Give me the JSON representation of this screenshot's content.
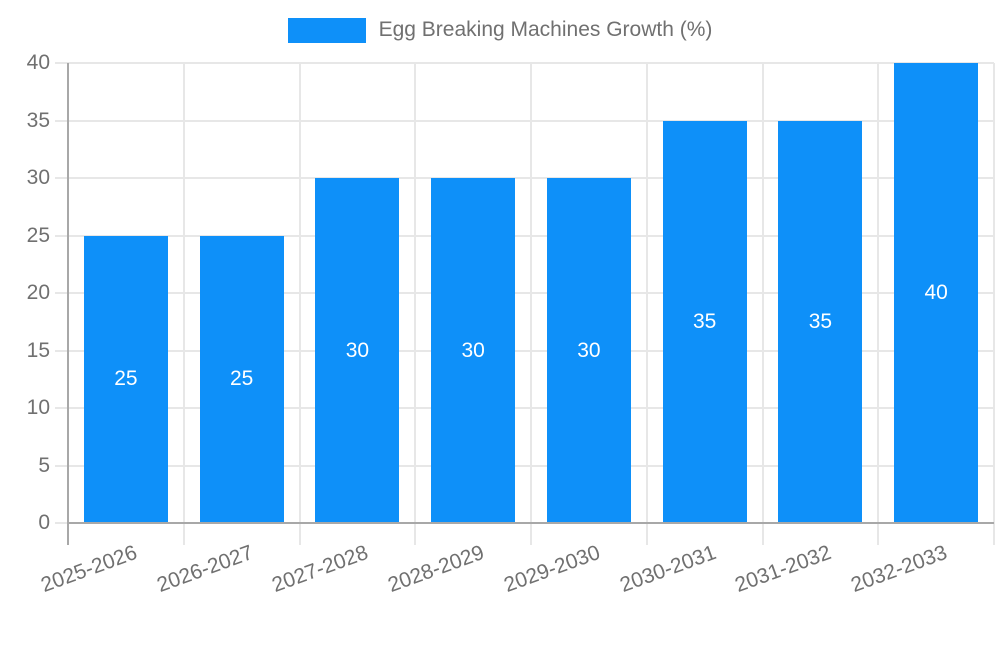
{
  "chart_data": {
    "type": "bar",
    "legend": "Egg Breaking Machines Growth (%)",
    "legend_position": "top",
    "categories": [
      "2025-2026",
      "2026-2027",
      "2027-2028",
      "2028-2029",
      "2029-2030",
      "2030-2031",
      "2031-2032",
      "2032-2033"
    ],
    "values": [
      25,
      25,
      30,
      30,
      30,
      35,
      35,
      40
    ],
    "xlabel": "",
    "ylabel": "",
    "ylim": [
      0,
      40
    ],
    "yticks": [
      0,
      5,
      10,
      15,
      20,
      25,
      30,
      35,
      40
    ],
    "grid": true,
    "value_labels_shown": true
  },
  "colors": {
    "bar": "#0e90f9",
    "grid": "#e7e7e7",
    "axis_line": "#a8a8a8",
    "axis_text": "#707070",
    "value_label": "#ffffff",
    "background": "#ffffff"
  }
}
